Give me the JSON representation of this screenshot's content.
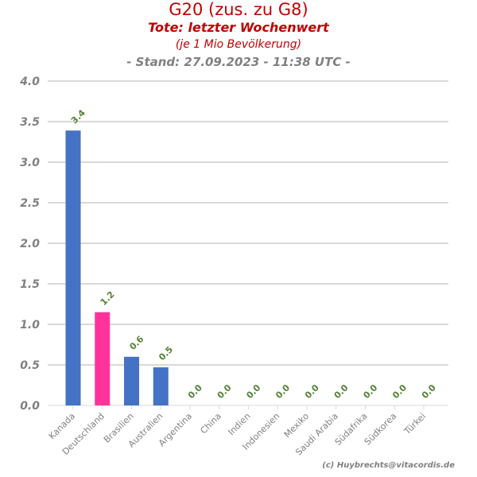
{
  "chart_data": {
    "type": "bar",
    "title": "G20 (zus. zu G8)",
    "subtitle": "Tote: letzter Wochenwert",
    "subtitle2": "(je 1 Mio Bevölkerung)",
    "stand": "- Stand: 27.09.2023 - 11:38 UTC -",
    "credit": "(c) Huybrechts@vitacordis.de",
    "categories": [
      "Kanada",
      "Deutschland",
      "Brasilien",
      "Australien",
      "Argentina",
      "China",
      "Indien",
      "Indonesien",
      "Mexiko",
      "Saudi Arabia",
      "Südafrika",
      "Südkorea",
      "Türkei"
    ],
    "values": [
      3.39,
      1.15,
      0.6,
      0.47,
      0,
      0,
      0,
      0,
      0,
      0,
      0,
      0,
      0
    ],
    "labels": [
      "3.4",
      "1.2",
      "0.6",
      "0.5",
      "0.0",
      "0.0",
      "0.0",
      "0.0",
      "0.0",
      "0.0",
      "0.0",
      "0.0",
      "0.0"
    ],
    "colors": [
      "#4472c4",
      "#ff3399",
      "#4472c4",
      "#4472c4",
      "#4472c4",
      "#4472c4",
      "#4472c4",
      "#4472c4",
      "#4472c4",
      "#4472c4",
      "#4472c4",
      "#4472c4",
      "#4472c4"
    ],
    "yticks": [
      "0.0",
      "0.5",
      "1.0",
      "1.5",
      "2.0",
      "2.5",
      "3.0",
      "3.5",
      "4.0"
    ],
    "ylim": [
      0,
      4
    ],
    "grid": true,
    "label_color": "#548235"
  }
}
